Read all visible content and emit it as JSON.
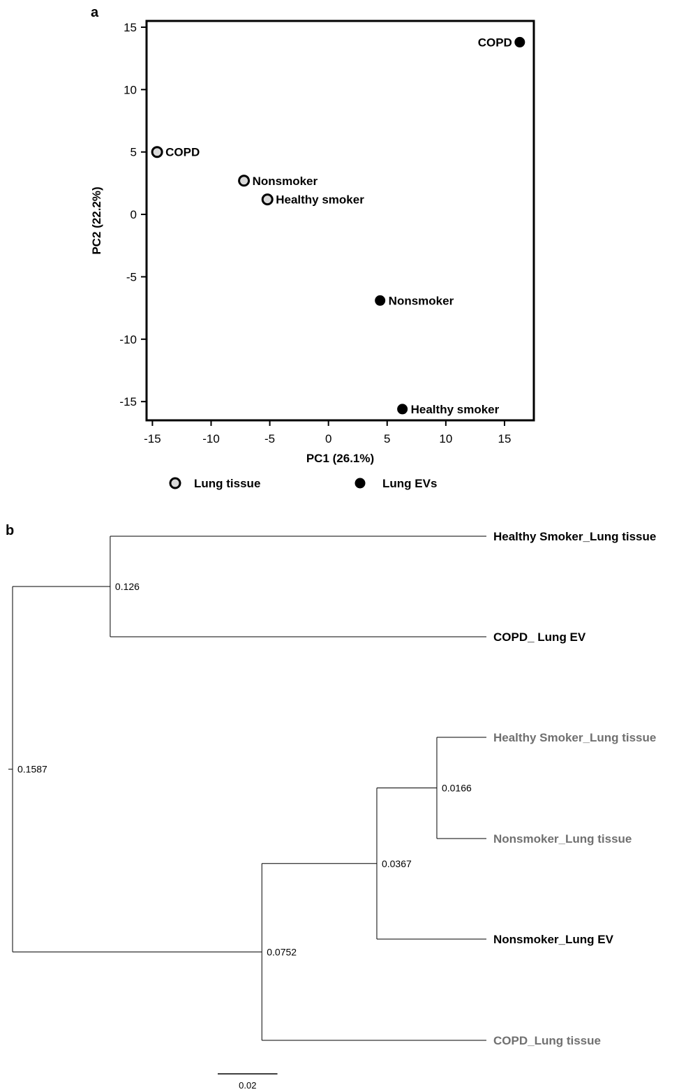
{
  "chart_data": [
    {
      "type": "scatter",
      "panel_label": "a",
      "xlabel": "PC1 (26.1%)",
      "ylabel": "PC2 (22.2%)",
      "xlim": [
        -15.5,
        17.5
      ],
      "ylim": [
        -16.5,
        15.5
      ],
      "xticks": [
        -15,
        -10,
        -5,
        0,
        5,
        10,
        15
      ],
      "yticks": [
        -15,
        -10,
        -5,
        0,
        5,
        10,
        15
      ],
      "xtick_labels": [
        "-15",
        "-10",
        "-5",
        "0",
        "5",
        "10",
        "15"
      ],
      "ytick_labels": [
        "-15",
        "-10",
        "-5",
        "0",
        "5",
        "10",
        "15"
      ],
      "grid": false,
      "legend_position": "bottom",
      "series": [
        {
          "name": "Lung tissue",
          "marker": "open-circle",
          "fill": "#d9d9d9",
          "stroke": "#000000",
          "points": [
            {
              "x": -14.6,
              "y": 5.0,
              "label": "COPD"
            },
            {
              "x": -7.2,
              "y": 2.7,
              "label": "Nonsmoker"
            },
            {
              "x": -5.2,
              "y": 1.2,
              "label": "Healthy smoker"
            }
          ]
        },
        {
          "name": "Lung EVs",
          "marker": "filled-circle",
          "fill": "#000000",
          "stroke": "#000000",
          "points": [
            {
              "x": 16.3,
              "y": 13.8,
              "label": "COPD"
            },
            {
              "x": 4.4,
              "y": -6.9,
              "label": "Nonsmoker"
            },
            {
              "x": 6.3,
              "y": -15.6,
              "label": "Healthy smoker"
            }
          ]
        }
      ]
    },
    {
      "type": "dendrogram",
      "panel_label": "b",
      "leaves": [
        {
          "label": "Healthy Smoker_Lung tissue",
          "style": "bold",
          "color": "#000000"
        },
        {
          "label": "COPD_ Lung EV",
          "style": "bold",
          "color": "#000000"
        },
        {
          "label": "Healthy Smoker_Lung tissue",
          "style": "bold",
          "color": "#707070"
        },
        {
          "label": "Nonsmoker_Lung tissue",
          "style": "bold",
          "color": "#707070"
        },
        {
          "label": "Nonsmoker_Lung EV",
          "style": "bold",
          "color": "#000000"
        },
        {
          "label": "COPD_Lung tissue",
          "style": "bold",
          "color": "#707070"
        }
      ],
      "nodes": [
        {
          "label": "0.126",
          "height": 0.126,
          "children": [
            0,
            1
          ]
        },
        {
          "label": "0.0166",
          "height": 0.0166,
          "children": [
            2,
            3
          ]
        },
        {
          "label": "0.0367",
          "height": 0.0367,
          "children": [
            "n1",
            4
          ]
        },
        {
          "label": "0.0752",
          "height": 0.0752,
          "children": [
            "n2",
            5
          ]
        },
        {
          "label": "0.1587",
          "height": 0.1587,
          "children": [
            "n0",
            "n3"
          ]
        }
      ],
      "scale_bar": {
        "value": 0.02,
        "label": "0.02"
      }
    }
  ]
}
